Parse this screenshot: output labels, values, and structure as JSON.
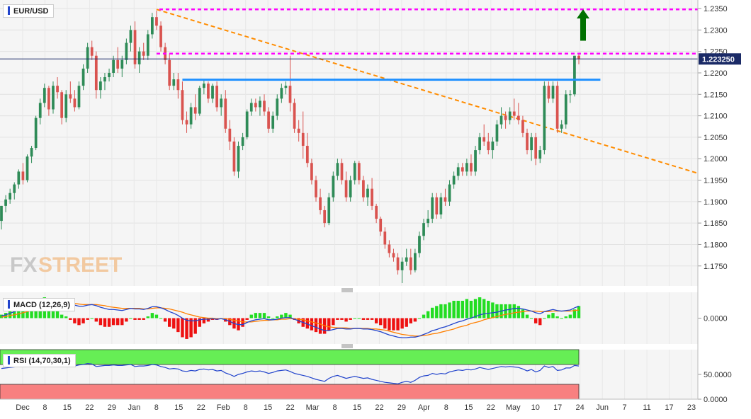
{
  "chart_data": {
    "type": "candlestick",
    "symbol": "EUR/USD",
    "colors": {
      "up": "#2e8b57",
      "down": "#d9534f",
      "resistance": "#ff00ff",
      "trendline": "#ff8c00",
      "support": "#1e90ff",
      "arrow": "#007000"
    },
    "price_axis": {
      "ylim": [
        1.171,
        1.236
      ],
      "ticks": [
        "1.2350",
        "1.2300",
        "1.2250",
        "1.2200",
        "1.2150",
        "1.2100",
        "1.2050",
        "1.2000",
        "1.1950",
        "1.1900",
        "1.1850",
        "1.1800",
        "1.1750"
      ],
      "last_price_label": "1.223250",
      "last_price": 1.22325
    },
    "x_labels": [
      "Dec",
      "8",
      "15",
      "22",
      "29",
      "Jan",
      "8",
      "15",
      "22",
      "Feb",
      "8",
      "15",
      "22",
      "Mar",
      "8",
      "15",
      "22",
      "29",
      "Apr",
      "8",
      "15",
      "22",
      "May",
      "10",
      "17",
      "24",
      "Jun",
      "7",
      "11",
      "17",
      "23"
    ],
    "candles": [
      [
        1.1855,
        1.189,
        1.1835,
        1.189
      ],
      [
        1.189,
        1.1915,
        1.1875,
        1.1905
      ],
      [
        1.1905,
        1.193,
        1.1895,
        1.192
      ],
      [
        1.192,
        1.1945,
        1.1905,
        1.194
      ],
      [
        1.194,
        1.1975,
        1.193,
        1.197
      ],
      [
        1.197,
        1.199,
        1.194,
        1.195
      ],
      [
        1.195,
        1.201,
        1.1945,
        1.2005
      ],
      [
        1.2005,
        1.203,
        1.199,
        1.2025
      ],
      [
        1.2025,
        1.21,
        1.202,
        1.2095
      ],
      [
        1.2095,
        1.214,
        1.208,
        1.213
      ],
      [
        1.213,
        1.2175,
        1.212,
        1.2165
      ],
      [
        1.2165,
        1.217,
        1.21,
        1.2115
      ],
      [
        1.2115,
        1.218,
        1.2105,
        1.217
      ],
      [
        1.217,
        1.219,
        1.214,
        1.2155
      ],
      [
        1.2155,
        1.216,
        1.208,
        1.2095
      ],
      [
        1.2095,
        1.216,
        1.2085,
        1.215
      ],
      [
        1.215,
        1.218,
        1.213,
        1.214
      ],
      [
        1.214,
        1.216,
        1.211,
        1.212
      ],
      [
        1.212,
        1.218,
        1.2115,
        1.217
      ],
      [
        1.217,
        1.222,
        1.216,
        1.221
      ],
      [
        1.221,
        1.227,
        1.22,
        1.226
      ],
      [
        1.226,
        1.2275,
        1.223,
        1.224
      ],
      [
        1.224,
        1.225,
        1.214,
        1.216
      ],
      [
        1.216,
        1.219,
        1.214,
        1.218
      ],
      [
        1.218,
        1.22,
        1.216,
        1.219
      ],
      [
        1.219,
        1.221,
        1.218,
        1.22
      ],
      [
        1.22,
        1.224,
        1.219,
        1.223
      ],
      [
        1.223,
        1.226,
        1.22,
        1.221
      ],
      [
        1.221,
        1.224,
        1.219,
        1.223
      ],
      [
        1.223,
        1.228,
        1.222,
        1.227
      ],
      [
        1.227,
        1.231,
        1.225,
        1.23
      ],
      [
        1.23,
        1.232,
        1.221,
        1.222
      ],
      [
        1.222,
        1.226,
        1.22,
        1.225
      ],
      [
        1.225,
        1.227,
        1.223,
        1.224
      ],
      [
        1.224,
        1.23,
        1.223,
        1.229
      ],
      [
        1.229,
        1.234,
        1.228,
        1.233
      ],
      [
        1.233,
        1.2345,
        1.23,
        1.231
      ],
      [
        1.231,
        1.232,
        1.225,
        1.226
      ],
      [
        1.226,
        1.227,
        1.222,
        1.223
      ],
      [
        1.223,
        1.2245,
        1.216,
        1.217
      ],
      [
        1.217,
        1.22,
        1.216,
        1.2185
      ],
      [
        1.2185,
        1.22,
        1.214,
        1.216
      ],
      [
        1.216,
        1.218,
        1.208,
        1.209
      ],
      [
        1.209,
        1.211,
        1.206,
        1.208
      ],
      [
        1.208,
        1.213,
        1.207,
        1.212
      ],
      [
        1.212,
        1.215,
        1.209,
        1.2105
      ],
      [
        1.2105,
        1.217,
        1.21,
        1.2165
      ],
      [
        1.2165,
        1.2185,
        1.215,
        1.2175
      ],
      [
        1.2175,
        1.218,
        1.213,
        1.214
      ],
      [
        1.214,
        1.2175,
        1.213,
        1.217
      ],
      [
        1.217,
        1.218,
        1.211,
        1.212
      ],
      [
        1.212,
        1.215,
        1.21,
        1.214
      ],
      [
        1.214,
        1.216,
        1.206,
        1.207
      ],
      [
        1.207,
        1.209,
        1.202,
        1.204
      ],
      [
        1.204,
        1.205,
        1.196,
        1.197
      ],
      [
        1.197,
        1.204,
        1.1955,
        1.203
      ],
      [
        1.203,
        1.206,
        1.202,
        1.205
      ],
      [
        1.205,
        1.2115,
        1.2045,
        1.211
      ],
      [
        1.211,
        1.214,
        1.21,
        1.213
      ],
      [
        1.213,
        1.214,
        1.211,
        1.212
      ],
      [
        1.212,
        1.2145,
        1.21,
        1.2135
      ],
      [
        1.2135,
        1.215,
        1.21,
        1.211
      ],
      [
        1.211,
        1.212,
        1.206,
        1.207
      ],
      [
        1.207,
        1.211,
        1.206,
        1.21
      ],
      [
        1.21,
        1.215,
        1.209,
        1.214
      ],
      [
        1.214,
        1.2175,
        1.213,
        1.2165
      ],
      [
        1.2165,
        1.218,
        1.215,
        1.217
      ],
      [
        1.217,
        1.224,
        1.211,
        1.213
      ],
      [
        1.213,
        1.214,
        1.206,
        1.207
      ],
      [
        1.207,
        1.209,
        1.204,
        1.206
      ],
      [
        1.206,
        1.211,
        1.2,
        1.203
      ],
      [
        1.203,
        1.206,
        1.198,
        1.199
      ],
      [
        1.199,
        1.2,
        1.194,
        1.195
      ],
      [
        1.195,
        1.196,
        1.19,
        1.191
      ],
      [
        1.191,
        1.193,
        1.187,
        1.188
      ],
      [
        1.188,
        1.189,
        1.184,
        1.185
      ],
      [
        1.185,
        1.192,
        1.1845,
        1.191
      ],
      [
        1.191,
        1.197,
        1.19,
        1.196
      ],
      [
        1.196,
        1.2,
        1.195,
        1.199
      ],
      [
        1.199,
        1.2,
        1.194,
        1.195
      ],
      [
        1.195,
        1.197,
        1.19,
        1.191
      ],
      [
        1.191,
        1.196,
        1.19,
        1.195
      ],
      [
        1.195,
        1.1995,
        1.194,
        1.199
      ],
      [
        1.199,
        1.1995,
        1.194,
        1.195
      ],
      [
        1.195,
        1.196,
        1.19,
        1.191
      ],
      [
        1.191,
        1.194,
        1.189,
        1.193
      ],
      [
        1.193,
        1.1955,
        1.188,
        1.189
      ],
      [
        1.189,
        1.1895,
        1.185,
        1.186
      ],
      [
        1.186,
        1.1865,
        1.182,
        1.183
      ],
      [
        1.183,
        1.184,
        1.179,
        1.18
      ],
      [
        1.18,
        1.181,
        1.177,
        1.178
      ],
      [
        1.178,
        1.179,
        1.176,
        1.177
      ],
      [
        1.177,
        1.178,
        1.173,
        1.174
      ],
      [
        1.174,
        1.177,
        1.171,
        1.176
      ],
      [
        1.176,
        1.179,
        1.175,
        1.177
      ],
      [
        1.177,
        1.179,
        1.173,
        1.174
      ],
      [
        1.174,
        1.179,
        1.1735,
        1.178
      ],
      [
        1.178,
        1.183,
        1.177,
        1.182
      ],
      [
        1.182,
        1.186,
        1.181,
        1.185
      ],
      [
        1.185,
        1.188,
        1.184,
        1.186
      ],
      [
        1.186,
        1.192,
        1.185,
        1.191
      ],
      [
        1.191,
        1.192,
        1.186,
        1.187
      ],
      [
        1.187,
        1.192,
        1.186,
        1.191
      ],
      [
        1.191,
        1.193,
        1.189,
        1.19
      ],
      [
        1.19,
        1.195,
        1.189,
        1.194
      ],
      [
        1.194,
        1.197,
        1.193,
        1.196
      ],
      [
        1.196,
        1.199,
        1.195,
        1.198
      ],
      [
        1.198,
        1.199,
        1.196,
        1.197
      ],
      [
        1.197,
        1.2,
        1.196,
        1.199
      ],
      [
        1.199,
        1.201,
        1.196,
        1.197
      ],
      [
        1.197,
        1.203,
        1.196,
        1.202
      ],
      [
        1.202,
        1.206,
        1.201,
        1.205
      ],
      [
        1.205,
        1.208,
        1.203,
        1.204
      ],
      [
        1.204,
        1.206,
        1.201,
        1.202
      ],
      [
        1.202,
        1.205,
        1.2,
        1.204
      ],
      [
        1.204,
        1.209,
        1.203,
        1.208
      ],
      [
        1.208,
        1.212,
        1.207,
        1.21
      ],
      [
        1.21,
        1.211,
        1.207,
        1.209
      ],
      [
        1.209,
        1.212,
        1.208,
        1.211
      ],
      [
        1.211,
        1.214,
        1.209,
        1.21
      ],
      [
        1.21,
        1.213,
        1.208,
        1.209
      ],
      [
        1.209,
        1.21,
        1.205,
        1.206
      ],
      [
        1.206,
        1.207,
        1.201,
        1.202
      ],
      [
        1.202,
        1.206,
        1.1995,
        1.205
      ],
      [
        1.205,
        1.206,
        1.1985,
        1.2
      ],
      [
        1.2,
        1.203,
        1.199,
        1.202
      ],
      [
        1.202,
        1.218,
        1.201,
        1.217
      ],
      [
        1.217,
        1.218,
        1.213,
        1.214
      ],
      [
        1.214,
        1.218,
        1.213,
        1.217
      ],
      [
        1.217,
        1.218,
        1.206,
        1.207
      ],
      [
        1.207,
        1.209,
        1.206,
        1.208
      ],
      [
        1.208,
        1.216,
        1.207,
        1.215
      ],
      [
        1.215,
        1.216,
        1.213,
        1.215
      ],
      [
        1.215,
        1.224,
        1.2145,
        1.224
      ],
      [
        1.224,
        1.2245,
        1.222,
        1.2232
      ]
    ],
    "lines": {
      "resistance_top": 1.2348,
      "resistance_mid": 1.2245,
      "support_blue": 1.2184,
      "trendline": {
        "from_candle": 36,
        "from_price": 1.2348,
        "to_candle": 134,
        "to_price": 1.205,
        "extend_to_x_fraction": 1.0
      },
      "dashed_level_candle_index": 36
    },
    "macd": {
      "label": "MACD (12,26,9)",
      "ticks": [
        "0.0000"
      ],
      "ylim": [
        -0.0045,
        0.0045
      ],
      "macd_line": [
        0.0004,
        0.0006,
        0.0009,
        0.0012,
        0.0015,
        0.0017,
        0.002,
        0.0023,
        0.0027,
        0.003,
        0.0033,
        0.0033,
        0.0034,
        0.0033,
        0.003,
        0.0029,
        0.0027,
        0.0024,
        0.0022,
        0.0022,
        0.0024,
        0.0025,
        0.0023,
        0.002,
        0.0018,
        0.0016,
        0.0016,
        0.0015,
        0.0014,
        0.0016,
        0.0018,
        0.0017,
        0.0017,
        0.0016,
        0.0018,
        0.0021,
        0.0021,
        0.0019,
        0.0016,
        0.0012,
        0.0009,
        0.0005,
        0.0,
        -0.0004,
        -0.0005,
        -0.0005,
        -0.0003,
        -0.0002,
        -0.0002,
        -0.0001,
        -0.0002,
        -0.0001,
        -0.0003,
        -0.0006,
        -0.001,
        -0.0012,
        -0.0012,
        -0.0008,
        -0.0005,
        -0.0003,
        -0.0002,
        -0.0001,
        -0.0003,
        -0.0003,
        -0.0002,
        0.0,
        0.0001,
        0.0001,
        -0.0002,
        -0.0005,
        -0.0008,
        -0.0011,
        -0.0014,
        -0.0017,
        -0.002,
        -0.0023,
        -0.0023,
        -0.0021,
        -0.0019,
        -0.0019,
        -0.002,
        -0.002,
        -0.0019,
        -0.0019,
        -0.002,
        -0.002,
        -0.0021,
        -0.0023,
        -0.0025,
        -0.0028,
        -0.0031,
        -0.0033,
        -0.0035,
        -0.0036,
        -0.0036,
        -0.0035,
        -0.0035,
        -0.0033,
        -0.003,
        -0.0027,
        -0.0023,
        -0.0021,
        -0.0018,
        -0.0016,
        -0.0013,
        -0.001,
        -0.0007,
        -0.0005,
        -0.0002,
        0.0,
        0.0003,
        0.0006,
        0.0008,
        0.0009,
        0.001,
        0.0011,
        0.0013,
        0.0015,
        0.0016,
        0.0018,
        0.0018,
        0.0017,
        0.0015,
        0.0013,
        0.001,
        0.0008,
        0.0012,
        0.0014,
        0.0016,
        0.0014,
        0.0013,
        0.0014,
        0.0015,
        0.0019,
        0.0022
      ],
      "signal_line": [
        0.0002,
        0.0003,
        0.0005,
        0.0006,
        0.0008,
        0.001,
        0.0012,
        0.0014,
        0.0016,
        0.0019,
        0.0021,
        0.0023,
        0.0025,
        0.0027,
        0.0028,
        0.0028,
        0.0028,
        0.0027,
        0.0026,
        0.0025,
        0.0025,
        0.0025,
        0.0025,
        0.0024,
        0.0023,
        0.0021,
        0.002,
        0.0019,
        0.0018,
        0.0018,
        0.0018,
        0.0018,
        0.0018,
        0.0017,
        0.0017,
        0.0018,
        0.0019,
        0.0019,
        0.0018,
        0.0017,
        0.0015,
        0.0013,
        0.0011,
        0.0008,
        0.0006,
        0.0004,
        0.0002,
        0.0001,
        0.0,
        0.0,
        -0.0001,
        -0.0001,
        -0.0001,
        -0.0002,
        -0.0004,
        -0.0005,
        -0.0007,
        -0.0007,
        -0.0007,
        -0.0006,
        -0.0005,
        -0.0004,
        -0.0004,
        -0.0003,
        -0.0003,
        -0.0002,
        -0.0002,
        -0.0001,
        -0.0001,
        -0.0002,
        -0.0003,
        -0.0005,
        -0.0007,
        -0.0009,
        -0.0011,
        -0.0014,
        -0.0016,
        -0.0017,
        -0.0018,
        -0.0018,
        -0.0018,
        -0.0019,
        -0.0019,
        -0.0019,
        -0.0019,
        -0.0019,
        -0.002,
        -0.002,
        -0.0021,
        -0.0022,
        -0.0024,
        -0.0026,
        -0.0028,
        -0.003,
        -0.0031,
        -0.0032,
        -0.0033,
        -0.0033,
        -0.0032,
        -0.0031,
        -0.0029,
        -0.0028,
        -0.0026,
        -0.0024,
        -0.0022,
        -0.002,
        -0.0017,
        -0.0015,
        -0.0013,
        -0.001,
        -0.0008,
        -0.0006,
        -0.0003,
        -0.0001,
        0.0001,
        0.0003,
        0.0005,
        0.0007,
        0.0008,
        0.001,
        0.0011,
        0.0012,
        0.0013,
        0.0013,
        0.0013,
        0.0012,
        0.0012,
        0.0012,
        0.0013,
        0.0013,
        0.0013,
        0.0013,
        0.0013,
        0.0014,
        0.0015
      ]
    },
    "rsi": {
      "label": "RSI (14,70,30,1)",
      "ticks": [
        "50.0000",
        "0.0000"
      ],
      "ylim": [
        0,
        100
      ],
      "overbought": 70,
      "oversold": 30,
      "values": [
        62,
        63,
        64,
        65,
        66,
        66,
        67,
        68,
        69,
        70,
        72,
        70,
        71,
        70,
        67,
        69,
        68,
        67,
        69,
        70,
        72,
        71,
        66,
        67,
        68,
        68,
        69,
        68,
        68,
        69,
        70,
        66,
        67,
        67,
        68,
        70,
        69,
        66,
        64,
        61,
        62,
        61,
        57,
        56,
        58,
        57,
        60,
        61,
        59,
        60,
        57,
        58,
        53,
        50,
        46,
        50,
        52,
        55,
        57,
        56,
        57,
        55,
        52,
        54,
        57,
        58,
        59,
        56,
        52,
        50,
        48,
        46,
        43,
        40,
        38,
        36,
        42,
        46,
        48,
        45,
        42,
        44,
        46,
        44,
        42,
        43,
        40,
        38,
        36,
        34,
        33,
        32,
        31,
        34,
        36,
        34,
        38,
        44,
        47,
        48,
        52,
        50,
        52,
        51,
        55,
        57,
        59,
        58,
        60,
        59,
        61,
        64,
        62,
        60,
        62,
        64,
        66,
        65,
        66,
        65,
        64,
        61,
        57,
        60,
        55,
        58,
        67,
        64,
        66,
        58,
        59,
        63,
        63,
        68,
        67
      ]
    }
  }
}
